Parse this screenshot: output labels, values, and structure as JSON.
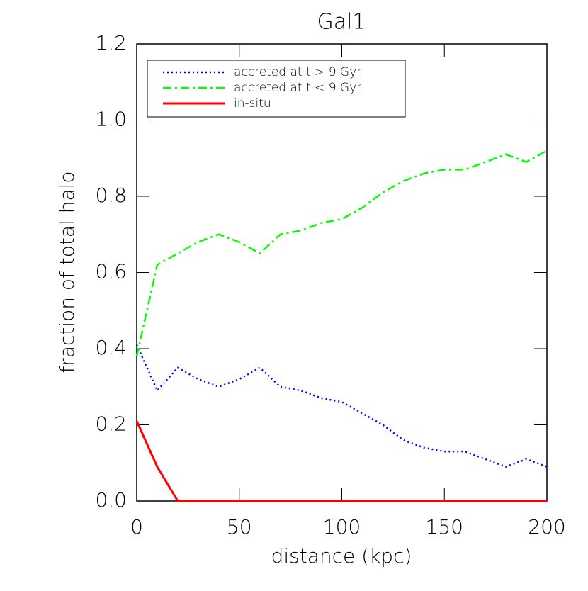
{
  "chart_data": {
    "type": "line",
    "title": "Gal1",
    "xlabel": "distance (kpc)",
    "ylabel": "fraction of total halo",
    "x": [
      0,
      10,
      20,
      30,
      40,
      50,
      60,
      70,
      80,
      90,
      100,
      110,
      120,
      130,
      140,
      150,
      160,
      170,
      180,
      190,
      200
    ],
    "series": [
      {
        "name": "accreted at t > 9 Gyr",
        "color": "#0000ff",
        "linestyle": "dotted",
        "values": [
          0.41,
          0.29,
          0.35,
          0.32,
          0.3,
          0.32,
          0.35,
          0.3,
          0.29,
          0.27,
          0.26,
          0.23,
          0.2,
          0.16,
          0.14,
          0.13,
          0.13,
          0.11,
          0.09,
          0.11,
          0.09
        ]
      },
      {
        "name": "accreted at t < 9 Gyr",
        "color": "#00ff00",
        "linestyle": "dashdot",
        "values": [
          0.38,
          0.62,
          0.65,
          0.68,
          0.7,
          0.68,
          0.65,
          0.7,
          0.71,
          0.73,
          0.74,
          0.77,
          0.81,
          0.84,
          0.86,
          0.87,
          0.87,
          0.89,
          0.91,
          0.89,
          0.92
        ]
      },
      {
        "name": "in-situ",
        "color": "#ff0000",
        "linestyle": "solid",
        "values": [
          0.21,
          0.09,
          0,
          0,
          0,
          0,
          0,
          0,
          0,
          0,
          0,
          0,
          0,
          0,
          0,
          0,
          0,
          0,
          0,
          0,
          0
        ]
      }
    ],
    "xlim": [
      0,
      200
    ],
    "xticks": [
      0,
      50,
      100,
      150,
      200
    ],
    "ylim": [
      0,
      1.2
    ],
    "yticks": [
      {
        "value": 0,
        "label": "0.0"
      },
      0.2,
      0.4,
      0.6,
      0.8,
      {
        "value": 1,
        "label": "1.0"
      },
      1.2
    ],
    "legend": "upper left"
  }
}
